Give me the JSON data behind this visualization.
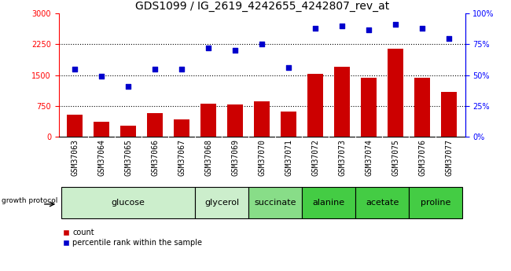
{
  "title": "GDS1099 / IG_2619_4242655_4242807_rev_at",
  "samples": [
    "GSM37063",
    "GSM37064",
    "GSM37065",
    "GSM37066",
    "GSM37067",
    "GSM37068",
    "GSM37069",
    "GSM37070",
    "GSM37071",
    "GSM37072",
    "GSM37073",
    "GSM37074",
    "GSM37075",
    "GSM37076",
    "GSM37077"
  ],
  "counts": [
    530,
    370,
    270,
    580,
    420,
    800,
    780,
    860,
    610,
    1530,
    1700,
    1440,
    2150,
    1430,
    1100
  ],
  "percentiles": [
    55,
    49,
    41,
    55,
    55,
    72,
    70,
    75,
    56,
    88,
    90,
    87,
    91,
    88,
    80
  ],
  "groups": [
    {
      "name": "glucose",
      "indices": [
        0,
        1,
        2,
        3,
        4
      ],
      "color": "#cceecc"
    },
    {
      "name": "glycerol",
      "indices": [
        5,
        6
      ],
      "color": "#cceecc"
    },
    {
      "name": "succinate",
      "indices": [
        7,
        8
      ],
      "color": "#88dd88"
    },
    {
      "name": "alanine",
      "indices": [
        9,
        10
      ],
      "color": "#44cc44"
    },
    {
      "name": "acetate",
      "indices": [
        11,
        12
      ],
      "color": "#44cc44"
    },
    {
      "name": "proline",
      "indices": [
        13,
        14
      ],
      "color": "#44cc44"
    }
  ],
  "bar_color": "#cc0000",
  "dot_color": "#0000cc",
  "ylim_left": [
    0,
    3000
  ],
  "ylim_right": [
    0,
    100
  ],
  "yticks_left": [
    0,
    750,
    1500,
    2250,
    3000
  ],
  "yticks_right": [
    0,
    25,
    50,
    75,
    100
  ],
  "ytick_labels_left": [
    "0",
    "750",
    "1500",
    "2250",
    "3000"
  ],
  "ytick_labels_right": [
    "0%",
    "25%",
    "50%",
    "75%",
    "100%"
  ],
  "hlines": [
    750,
    1500,
    2250
  ],
  "legend_count_label": "count",
  "legend_pct_label": "percentile rank within the sample",
  "growth_protocol_label": "growth protocol",
  "title_fontsize": 10,
  "tick_fontsize": 7,
  "group_label_fontsize": 8,
  "xtick_fontsize": 7,
  "legend_fontsize": 7
}
